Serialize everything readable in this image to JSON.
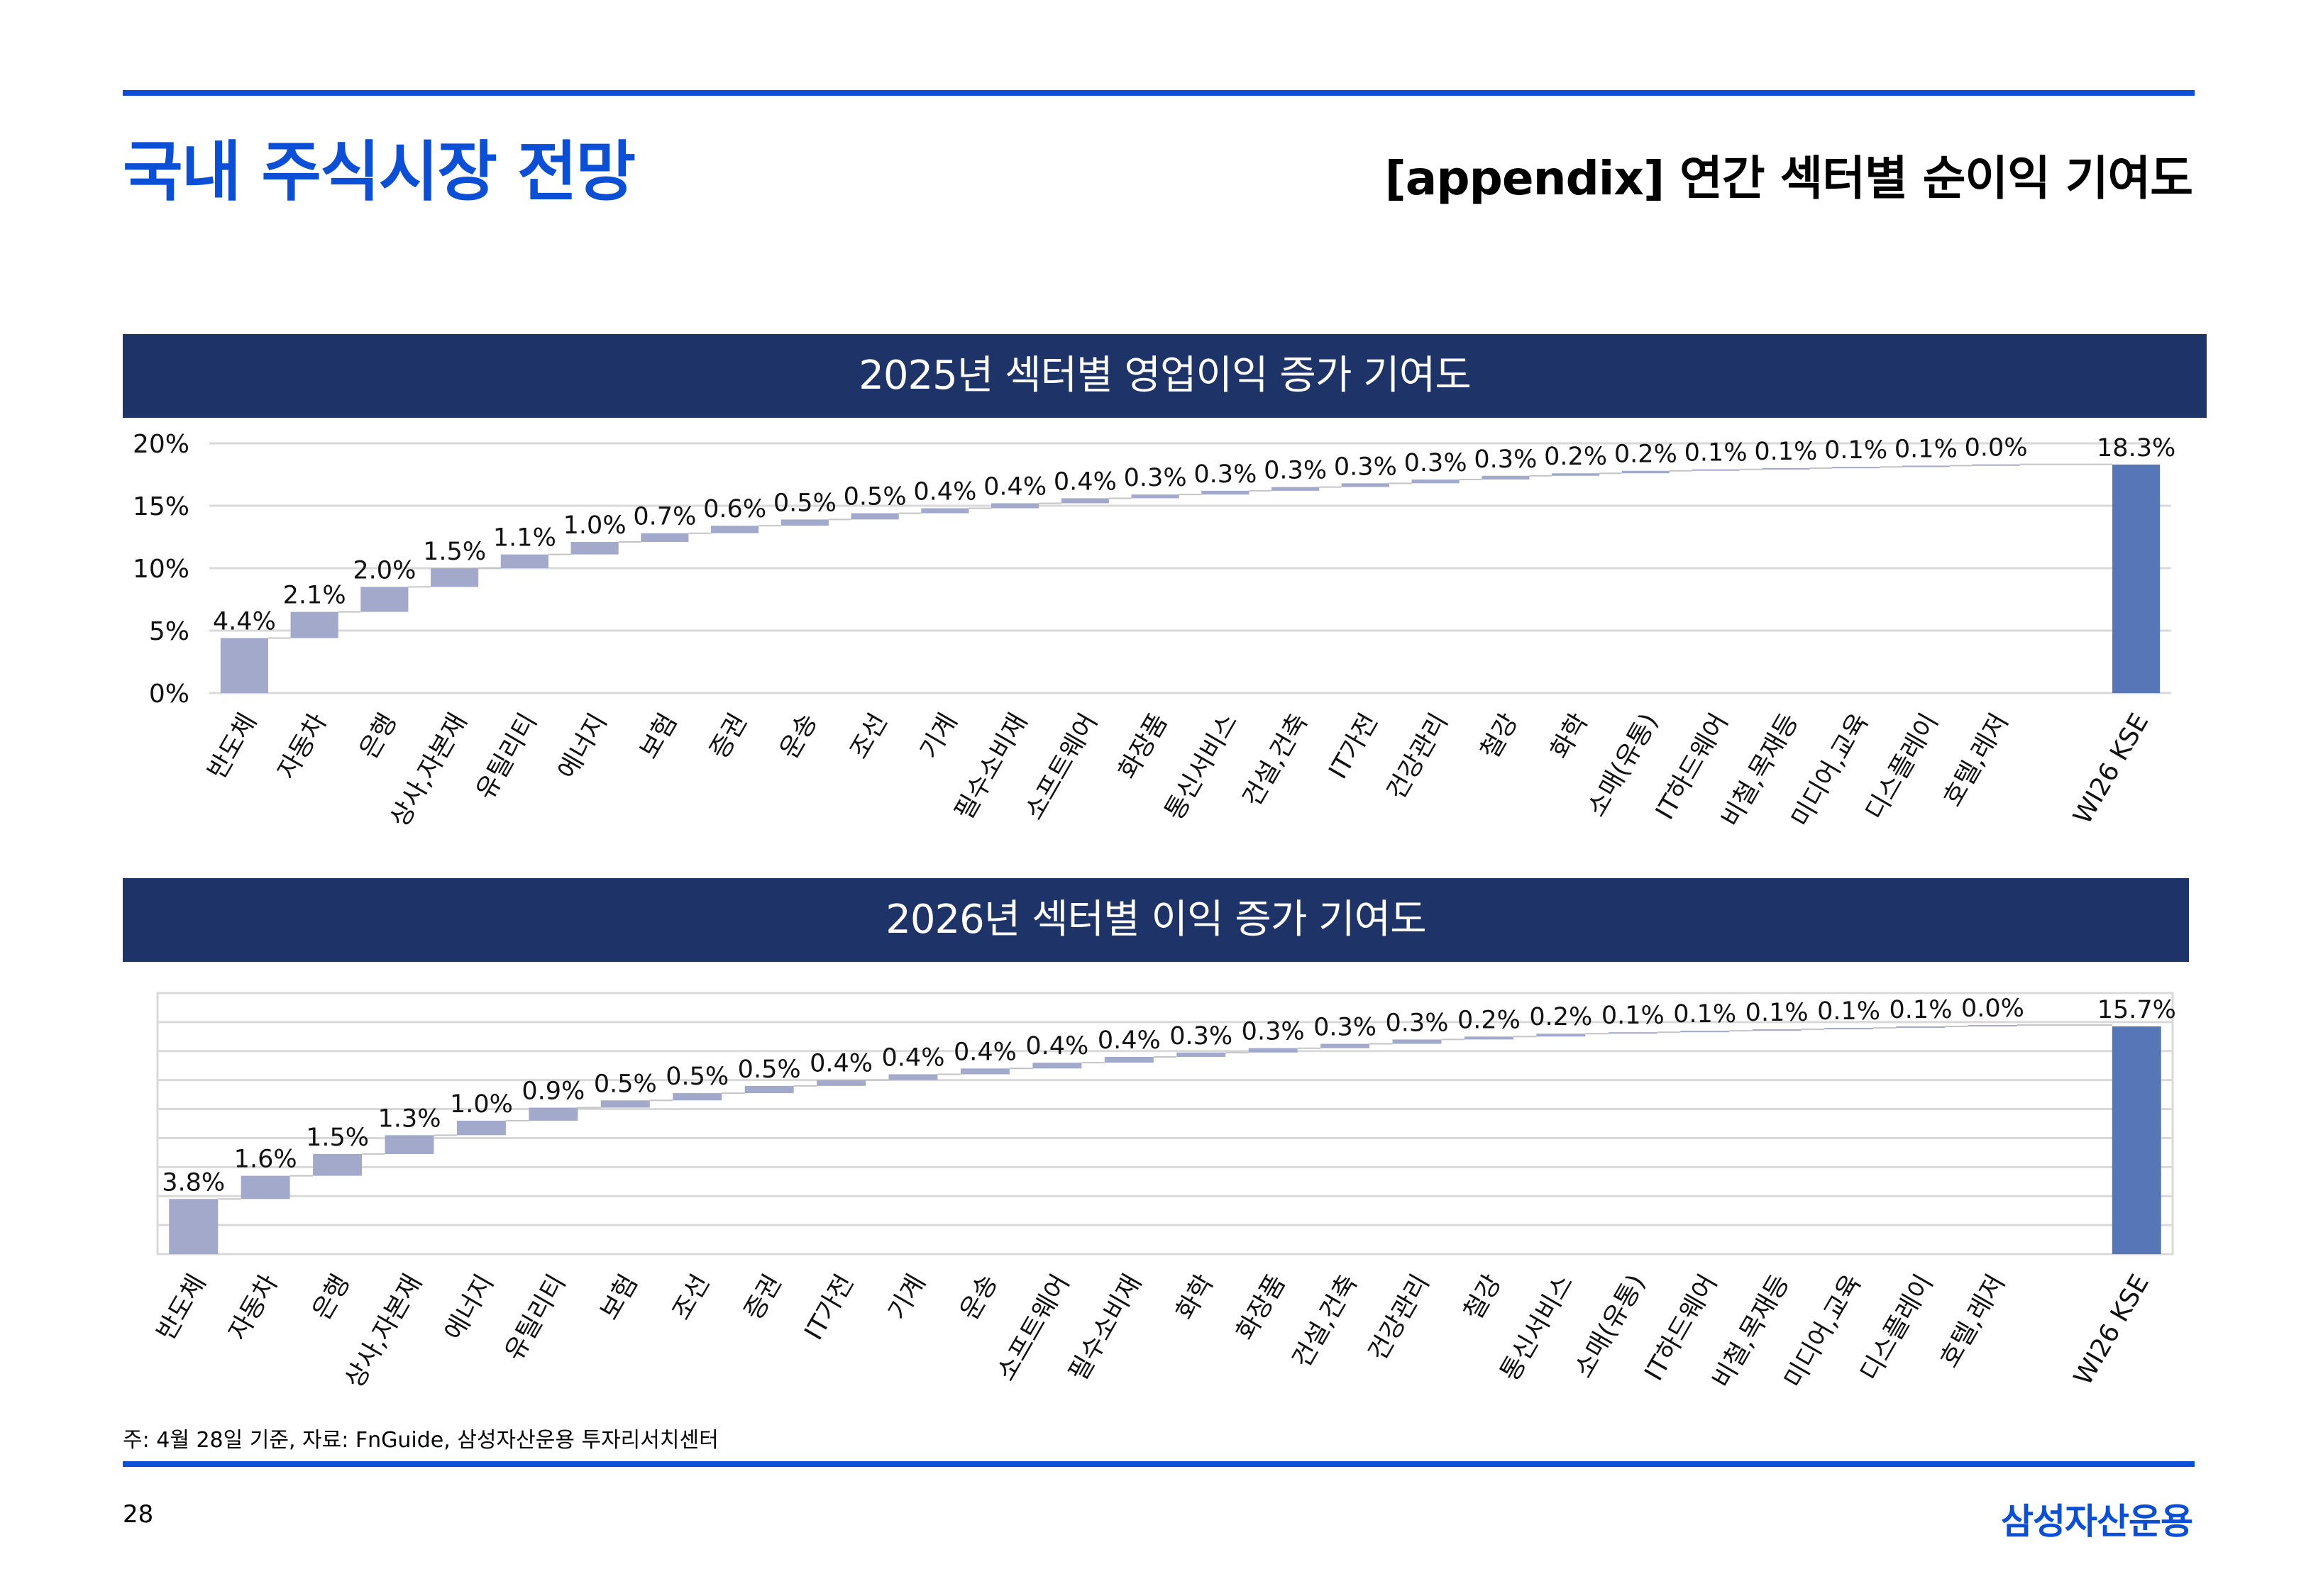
{
  "header": {
    "title": "국내 주식시장 전망",
    "subtitle": "[appendix] 연간 섹터별 순이익 기여도"
  },
  "footer": {
    "note": "주: 4월 28일 기준, 자료: FnGuide, 삼성자산운용 투자리서치센터",
    "page_number": "28",
    "company": "삼성자산운용"
  },
  "colors": {
    "accent": "#0a4fd6",
    "banner": "#1e3468",
    "bar": "#a3a9cb",
    "total_bar": "#5676b8",
    "grid": "#d9d9d9"
  },
  "chart_data": [
    {
      "type": "bar",
      "subtype": "waterfall",
      "title": "2025년 섹터별 영업이익 증가 기여도",
      "categories": [
        "반도체",
        "자동차",
        "은행",
        "상사,자본재",
        "유틸리티",
        "에너지",
        "보험",
        "증권",
        "운송",
        "조선",
        "기계",
        "필수소비재",
        "소프트웨어",
        "화장품",
        "통신서비스",
        "건설,건축",
        "IT가전",
        "건강관리",
        "철강",
        "화학",
        "소매(유통)",
        "IT하드웨어",
        "비철,목재등",
        "미디어,교육",
        "디스플레이",
        "호텔,레저",
        "",
        "WI26 KSE"
      ],
      "values": [
        4.4,
        2.1,
        2.0,
        1.5,
        1.1,
        1.0,
        0.7,
        0.6,
        0.5,
        0.5,
        0.4,
        0.4,
        0.4,
        0.3,
        0.3,
        0.3,
        0.3,
        0.3,
        0.3,
        0.2,
        0.2,
        0.1,
        0.1,
        0.1,
        0.1,
        0.0,
        null,
        18.3
      ],
      "labels": [
        "4.4%",
        "2.1%",
        "2.0%",
        "1.5%",
        "1.1%",
        "1.0%",
        "0.7%",
        "0.6%",
        "0.5%",
        "0.5%",
        "0.4%",
        "0.4%",
        "0.4%",
        "0.3%",
        "0.3%",
        "0.3%",
        "0.3%",
        "0.3%",
        "0.3%",
        "0.2%",
        "0.2%",
        "0.1%",
        "0.1%",
        "0.1%",
        "0.1%",
        "0.0%",
        "",
        "18.3%"
      ],
      "total_index": 27,
      "ylim": [
        0,
        20
      ],
      "yticks": [
        "0%",
        "5%",
        "10%",
        "15%",
        "20%"
      ],
      "ytick_values": [
        0,
        5,
        10,
        15,
        20
      ],
      "grid": true,
      "legend": "none"
    },
    {
      "type": "bar",
      "subtype": "waterfall",
      "title": "2026년 섹터별 이익 증가 기여도",
      "categories": [
        "반도체",
        "자동차",
        "은행",
        "상사,자본재",
        "에너지",
        "유틸리티",
        "보험",
        "조선",
        "증권",
        "IT가전",
        "기계",
        "운송",
        "소프트웨어",
        "필수소비재",
        "화학",
        "화장품",
        "건설,건축",
        "건강관리",
        "철강",
        "통신서비스",
        "소매(유통)",
        "IT하드웨어",
        "비철,목재등",
        "미디어,교육",
        "디스플레이",
        "호텔,레저",
        "",
        "WI26 KSE"
      ],
      "values": [
        3.8,
        1.6,
        1.5,
        1.3,
        1.0,
        0.9,
        0.5,
        0.5,
        0.5,
        0.4,
        0.4,
        0.4,
        0.4,
        0.4,
        0.3,
        0.3,
        0.3,
        0.3,
        0.2,
        0.2,
        0.1,
        0.1,
        0.1,
        0.1,
        0.1,
        0.0,
        null,
        15.7
      ],
      "labels": [
        "3.8%",
        "1.6%",
        "1.5%",
        "1.3%",
        "1.0%",
        "0.9%",
        "0.5%",
        "0.5%",
        "0.5%",
        "0.4%",
        "0.4%",
        "0.4%",
        "0.4%",
        "0.4%",
        "0.3%",
        "0.3%",
        "0.3%",
        "0.3%",
        "0.2%",
        "0.2%",
        "0.1%",
        "0.1%",
        "0.1%",
        "0.1%",
        "0.1%",
        "0.0%",
        "",
        "15.7%"
      ],
      "total_index": 27,
      "ylim": [
        0,
        18
      ],
      "grid": true,
      "legend": "none"
    }
  ]
}
